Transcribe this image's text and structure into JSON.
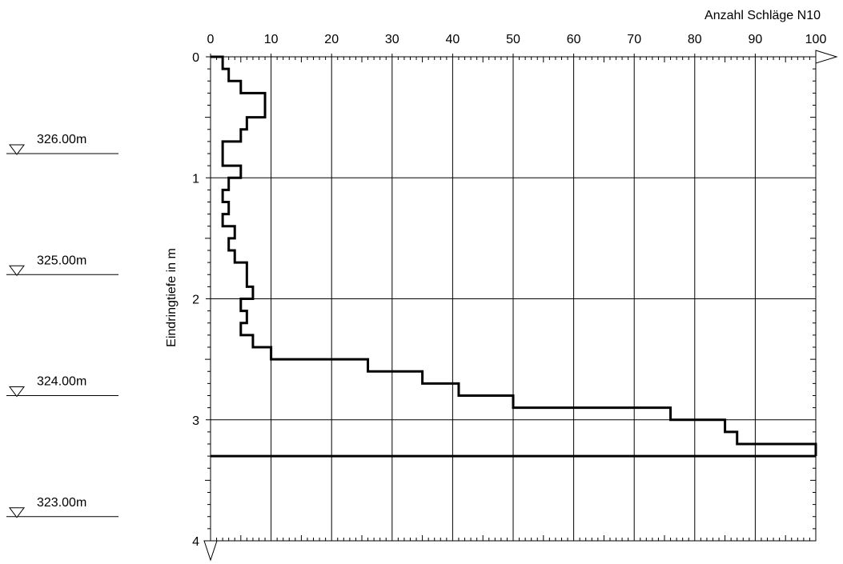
{
  "chart_data": {
    "type": "line",
    "title": "",
    "xlabel": "Anzahl Schläge N10",
    "ylabel": "Eindringtiefe in m",
    "xlim": [
      0,
      100
    ],
    "ylim": [
      4,
      0
    ],
    "x_ticks": [
      0,
      10,
      20,
      30,
      40,
      50,
      60,
      70,
      80,
      90,
      100
    ],
    "y_ticks": [
      0,
      1,
      2,
      3,
      4
    ],
    "grid": true,
    "series": [
      {
        "values": [
          {
            "depth_from": 0.0,
            "depth_to": 0.1,
            "n10": 2
          },
          {
            "depth_from": 0.1,
            "depth_to": 0.2,
            "n10": 3
          },
          {
            "depth_from": 0.2,
            "depth_to": 0.3,
            "n10": 5
          },
          {
            "depth_from": 0.3,
            "depth_to": 0.5,
            "n10": 9
          },
          {
            "depth_from": 0.5,
            "depth_to": 0.6,
            "n10": 6
          },
          {
            "depth_from": 0.6,
            "depth_to": 0.7,
            "n10": 5
          },
          {
            "depth_from": 0.7,
            "depth_to": 0.9,
            "n10": 2
          },
          {
            "depth_from": 0.9,
            "depth_to": 1.0,
            "n10": 5
          },
          {
            "depth_from": 1.0,
            "depth_to": 1.1,
            "n10": 3
          },
          {
            "depth_from": 1.1,
            "depth_to": 1.2,
            "n10": 2
          },
          {
            "depth_from": 1.2,
            "depth_to": 1.3,
            "n10": 3
          },
          {
            "depth_from": 1.3,
            "depth_to": 1.4,
            "n10": 2
          },
          {
            "depth_from": 1.4,
            "depth_to": 1.5,
            "n10": 4
          },
          {
            "depth_from": 1.5,
            "depth_to": 1.6,
            "n10": 3
          },
          {
            "depth_from": 1.6,
            "depth_to": 1.7,
            "n10": 4
          },
          {
            "depth_from": 1.7,
            "depth_to": 1.8,
            "n10": 6
          },
          {
            "depth_from": 1.8,
            "depth_to": 1.9,
            "n10": 6
          },
          {
            "depth_from": 1.9,
            "depth_to": 2.0,
            "n10": 7
          },
          {
            "depth_from": 2.0,
            "depth_to": 2.1,
            "n10": 5
          },
          {
            "depth_from": 2.1,
            "depth_to": 2.2,
            "n10": 6
          },
          {
            "depth_from": 2.2,
            "depth_to": 2.3,
            "n10": 5
          },
          {
            "depth_from": 2.3,
            "depth_to": 2.4,
            "n10": 7
          },
          {
            "depth_from": 2.4,
            "depth_to": 2.5,
            "n10": 10
          },
          {
            "depth_from": 2.5,
            "depth_to": 2.6,
            "n10": 26
          },
          {
            "depth_from": 2.6,
            "depth_to": 2.7,
            "n10": 35
          },
          {
            "depth_from": 2.7,
            "depth_to": 2.8,
            "n10": 41
          },
          {
            "depth_from": 2.8,
            "depth_to": 2.9,
            "n10": 50
          },
          {
            "depth_from": 2.9,
            "depth_to": 3.0,
            "n10": 76
          },
          {
            "depth_from": 3.0,
            "depth_to": 3.1,
            "n10": 85
          },
          {
            "depth_from": 3.1,
            "depth_to": 3.2,
            "n10": 87
          },
          {
            "depth_from": 3.2,
            "depth_to": 3.3,
            "n10": 100
          }
        ]
      }
    ],
    "final_depth": 3.3,
    "elevation_labels": [
      {
        "label": "326.00m",
        "depth": 0.8
      },
      {
        "label": "325.00m",
        "depth": 1.8
      },
      {
        "label": "324.00m",
        "depth": 2.8
      },
      {
        "label": "323.00m",
        "depth": 3.8
      }
    ]
  },
  "colors": {
    "line": "#000000",
    "grid": "#000000",
    "background": "#ffffff"
  }
}
